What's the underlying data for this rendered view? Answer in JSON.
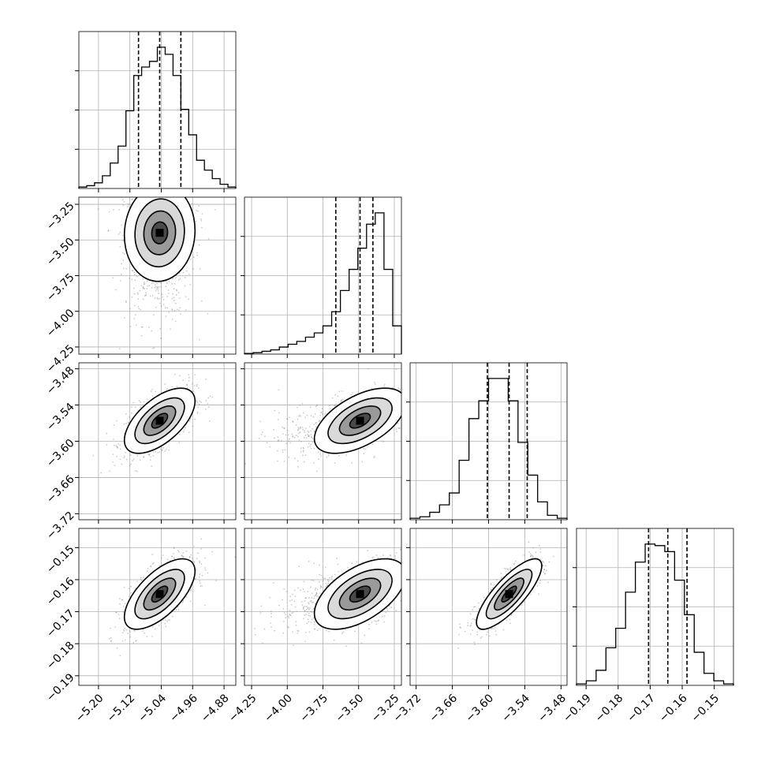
{
  "chart_data": {
    "type": "corner",
    "grid": true,
    "parameters": [
      {
        "ticks": [
          "−5.20",
          "−5.12",
          "−5.04",
          "−4.96",
          "−4.88"
        ],
        "tick_values": [
          -5.2,
          -5.12,
          -5.04,
          -4.96,
          -4.88
        ],
        "range": [
          -5.25,
          -4.85
        ],
        "quantiles": [
          -5.098,
          -5.044,
          -4.99
        ]
      },
      {
        "ticks": [
          "−4.25",
          "−4.00",
          "−3.75",
          "−3.50",
          "−3.25"
        ],
        "tick_values": [
          -4.25,
          -4.0,
          -3.75,
          -3.5,
          -3.25
        ],
        "range": [
          -4.3,
          -3.2
        ],
        "quantiles": [
          -3.66,
          -3.49,
          -3.4
        ]
      },
      {
        "ticks": [
          "−3.72",
          "−3.66",
          "−3.60",
          "−3.54",
          "−3.48"
        ],
        "tick_values": [
          -3.72,
          -3.66,
          -3.6,
          -3.54,
          -3.48
        ],
        "range": [
          -3.73,
          -3.47
        ],
        "quantiles": [
          -3.602,
          -3.566,
          -3.536
        ]
      },
      {
        "ticks": [
          "−0.19",
          "−0.18",
          "−0.17",
          "−0.16",
          "−0.15"
        ],
        "tick_values": [
          -0.19,
          -0.18,
          -0.17,
          -0.16,
          -0.15
        ],
        "range": [
          -0.193,
          -0.144
        ],
        "quantiles": [
          -0.1705,
          -0.1645,
          -0.1585
        ]
      }
    ],
    "histograms": [
      {
        "counts": [
          1,
          2,
          4,
          9,
          18,
          30,
          55,
          80,
          86,
          90,
          100,
          95,
          80,
          56,
          38,
          20,
          13,
          7,
          3,
          1
        ]
      },
      {
        "counts": [
          0.5,
          1,
          2,
          3,
          5,
          7,
          9,
          12,
          15,
          20,
          30,
          45,
          60,
          75,
          92,
          100,
          60,
          20
        ]
      },
      {
        "counts": [
          1,
          2,
          5,
          10,
          18,
          40,
          68,
          80,
          95,
          95,
          80,
          52,
          30,
          12,
          3,
          1
        ]
      },
      {
        "counts": [
          1,
          3,
          10,
          25,
          38,
          62,
          82,
          94,
          93,
          89,
          70,
          47,
          22,
          8,
          3,
          1
        ]
      }
    ],
    "scatter_panels": [
      {
        "x": 0,
        "y": 1,
        "mean": [
          -5.044,
          -3.45
        ],
        "std": [
          0.045,
          0.17
        ],
        "rho": 0.05,
        "skew_y": -1
      },
      {
        "x": 0,
        "y": 2,
        "mean": [
          -5.044,
          -3.566
        ],
        "std": [
          0.045,
          0.027
        ],
        "rho": 0.6,
        "skew_y": 0
      },
      {
        "x": 1,
        "y": 2,
        "mean": [
          -3.49,
          -3.566
        ],
        "std": [
          0.16,
          0.027
        ],
        "rho": 0.55,
        "skew_x": -1
      },
      {
        "x": 0,
        "y": 3,
        "mean": [
          -5.044,
          -0.1645
        ],
        "std": [
          0.045,
          0.0055
        ],
        "rho": 0.65,
        "skew_y": 0
      },
      {
        "x": 1,
        "y": 3,
        "mean": [
          -3.49,
          -0.1645
        ],
        "std": [
          0.16,
          0.0055
        ],
        "rho": 0.55,
        "skew_x": -1
      },
      {
        "x": 2,
        "y": 3,
        "mean": [
          -3.566,
          -0.1645
        ],
        "std": [
          0.027,
          0.0055
        ],
        "rho": 0.8,
        "skew_y": 0
      }
    ]
  }
}
